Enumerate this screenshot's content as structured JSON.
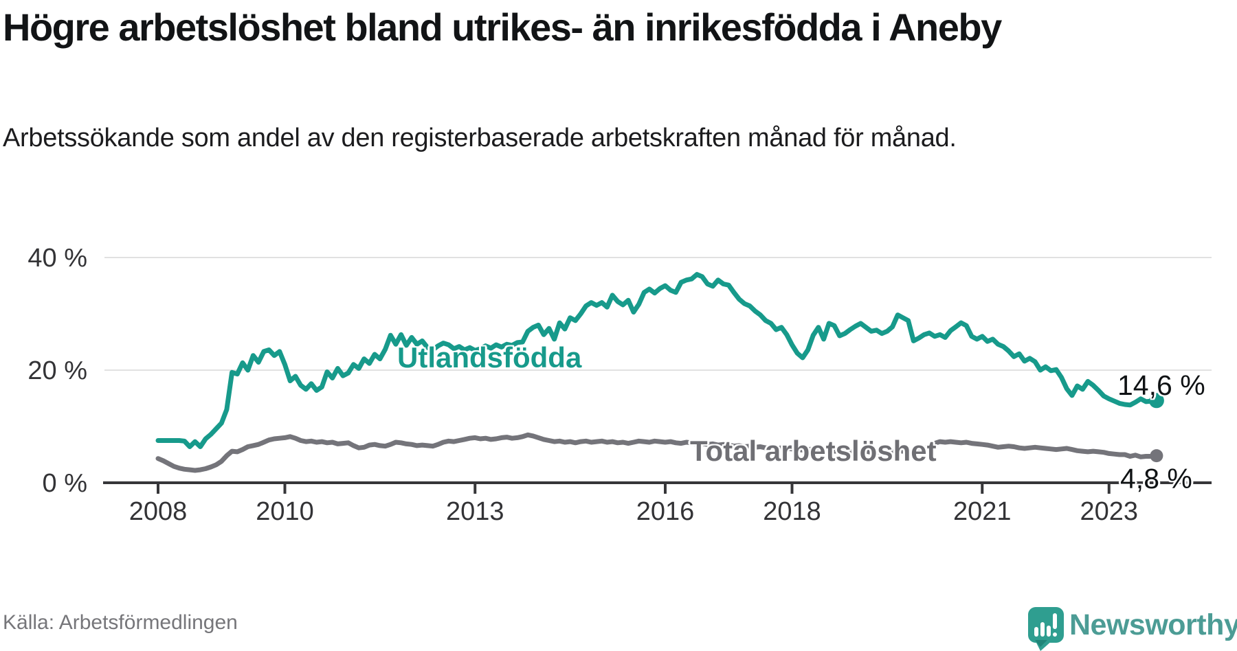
{
  "chart_data": {
    "type": "line",
    "title": "Högre arbetslöshet bland utrikes- än inrikesfödda i Aneby",
    "subtitle": "Arbetssökande som andel av den registerbaserade arbetskraften månad för månad.",
    "x_start_year": 2008,
    "x_step_months": 1,
    "x_end": "2023-10",
    "xticks": [
      2008,
      2010,
      2013,
      2016,
      2018,
      2021,
      2023
    ],
    "xtick_labels": [
      "2008",
      "2010",
      "2013",
      "2016",
      "2018",
      "2021",
      "2023"
    ],
    "yticks": [
      0,
      20,
      40
    ],
    "ytick_labels": [
      "0 %",
      "20 %",
      "40 %"
    ],
    "ylim": [
      0,
      40
    ],
    "grid": "horizontal",
    "legend": "inline-labels",
    "series": [
      {
        "name": "Utlandsfödda",
        "color": "#179a8b",
        "end_label": "14,6 %",
        "last_value": 14.6,
        "values": [
          7.5,
          7.5,
          7.5,
          7.5,
          7.5,
          7.4,
          6.4,
          7.3,
          6.4,
          7.8,
          8.6,
          9.6,
          10.6,
          13.0,
          19.6,
          19.3,
          21.3,
          20.0,
          22.6,
          21.4,
          23.3,
          23.6,
          22.6,
          23.3,
          21.0,
          18.1,
          18.9,
          17.3,
          16.6,
          17.6,
          16.4,
          17.0,
          19.7,
          18.6,
          20.3,
          19.0,
          19.5,
          21.0,
          20.3,
          22.0,
          21.2,
          22.8,
          22.0,
          23.7,
          26.2,
          24.6,
          26.3,
          24.4,
          25.8,
          24.6,
          25.2,
          24.0,
          23.6,
          24.3,
          24.8,
          24.5,
          23.8,
          24.2,
          23.6,
          24.0,
          23.5,
          23.8,
          24.3,
          23.9,
          24.5,
          24.1,
          24.6,
          24.4,
          24.9,
          25.0,
          26.9,
          27.6,
          28.0,
          26.3,
          27.4,
          25.5,
          28.4,
          27.3,
          29.3,
          28.8,
          30.0,
          31.4,
          32.0,
          31.5,
          32.0,
          31.2,
          33.3,
          32.2,
          31.6,
          32.4,
          30.3,
          31.7,
          33.8,
          34.4,
          33.7,
          34.5,
          35.0,
          34.2,
          33.8,
          35.6,
          36.0,
          36.2,
          37.0,
          36.6,
          35.3,
          34.9,
          36.0,
          35.3,
          35.1,
          33.8,
          32.6,
          31.8,
          31.4,
          30.5,
          29.8,
          28.8,
          28.3,
          27.2,
          27.6,
          26.3,
          24.5,
          23.0,
          22.2,
          23.6,
          26.2,
          27.6,
          25.5,
          28.3,
          27.9,
          26.1,
          26.5,
          27.2,
          27.8,
          28.3,
          27.6,
          26.9,
          27.1,
          26.5,
          26.9,
          27.7,
          29.8,
          29.3,
          28.8,
          25.2,
          25.7,
          26.3,
          26.6,
          26.0,
          26.3,
          25.8,
          27.0,
          27.7,
          28.4,
          27.9,
          26.0,
          25.5,
          26.0,
          25.1,
          25.5,
          24.6,
          24.2,
          23.4,
          22.4,
          22.9,
          21.6,
          22.1,
          21.5,
          20.0,
          20.6,
          19.9,
          20.1,
          18.7,
          16.7,
          15.5,
          17.2,
          16.6,
          18.0,
          17.3,
          16.4,
          15.4,
          14.9,
          14.5,
          14.1,
          13.9,
          13.8,
          14.3,
          14.9,
          14.4,
          14.5,
          14.6
        ]
      },
      {
        "name": "Total arbetslöshet",
        "color": "#74747a",
        "end_label": "4,8 %",
        "last_value": 4.8,
        "values": [
          4.3,
          3.9,
          3.4,
          2.9,
          2.6,
          2.4,
          2.3,
          2.2,
          2.3,
          2.5,
          2.8,
          3.2,
          3.8,
          4.8,
          5.6,
          5.5,
          5.9,
          6.4,
          6.6,
          6.8,
          7.2,
          7.6,
          7.8,
          7.9,
          8.0,
          8.2,
          7.9,
          7.5,
          7.3,
          7.4,
          7.2,
          7.3,
          7.1,
          7.2,
          6.9,
          7.0,
          7.1,
          6.6,
          6.2,
          6.3,
          6.7,
          6.8,
          6.6,
          6.5,
          6.8,
          7.2,
          7.1,
          6.9,
          6.8,
          6.6,
          6.7,
          6.6,
          6.5,
          6.8,
          7.2,
          7.4,
          7.3,
          7.5,
          7.7,
          7.9,
          8.0,
          7.8,
          7.9,
          7.7,
          7.8,
          8.0,
          8.1,
          7.9,
          8.0,
          8.2,
          8.5,
          8.3,
          8.0,
          7.7,
          7.5,
          7.3,
          7.4,
          7.2,
          7.3,
          7.1,
          7.3,
          7.4,
          7.2,
          7.3,
          7.4,
          7.2,
          7.3,
          7.1,
          7.2,
          7.0,
          7.2,
          7.4,
          7.3,
          7.2,
          7.4,
          7.3,
          7.2,
          7.3,
          7.1,
          7.0,
          7.2,
          7.1,
          6.9,
          7.0,
          6.8,
          6.9,
          6.7,
          6.8,
          6.7,
          6.5,
          6.6,
          6.4,
          6.5,
          6.3,
          6.4,
          6.2,
          6.3,
          6.1,
          6.2,
          6.1,
          6.0,
          5.9,
          5.8,
          5.9,
          6.0,
          5.8,
          5.7,
          5.8,
          5.6,
          5.7,
          5.5,
          5.6,
          5.7,
          5.5,
          5.6,
          5.4,
          5.5,
          5.4,
          5.5,
          5.6,
          5.7,
          5.6,
          5.5,
          5.6,
          5.8,
          6.0,
          6.5,
          7.0,
          7.3,
          7.2,
          7.3,
          7.2,
          7.1,
          7.2,
          7.0,
          6.9,
          6.8,
          6.7,
          6.5,
          6.3,
          6.4,
          6.5,
          6.4,
          6.2,
          6.1,
          6.2,
          6.3,
          6.2,
          6.1,
          6.0,
          5.9,
          6.0,
          6.1,
          5.9,
          5.7,
          5.6,
          5.5,
          5.6,
          5.5,
          5.4,
          5.2,
          5.1,
          5.0,
          5.0,
          4.7,
          4.9,
          4.6,
          4.7,
          4.7,
          4.8
        ]
      }
    ]
  },
  "footer": {
    "source": "Källa: Arbetsförmedlingen",
    "brand": "Newsworthy"
  },
  "colors": {
    "grid": "#e1e1e1",
    "axis": "#363639",
    "tick_text": "#333336",
    "accent_teal": "#179a8b",
    "series_gray": "#74747a",
    "brand_text": "#4c9c95",
    "brand_icon": "#2f9e90",
    "brand_icon_fold": "#1f8578"
  }
}
